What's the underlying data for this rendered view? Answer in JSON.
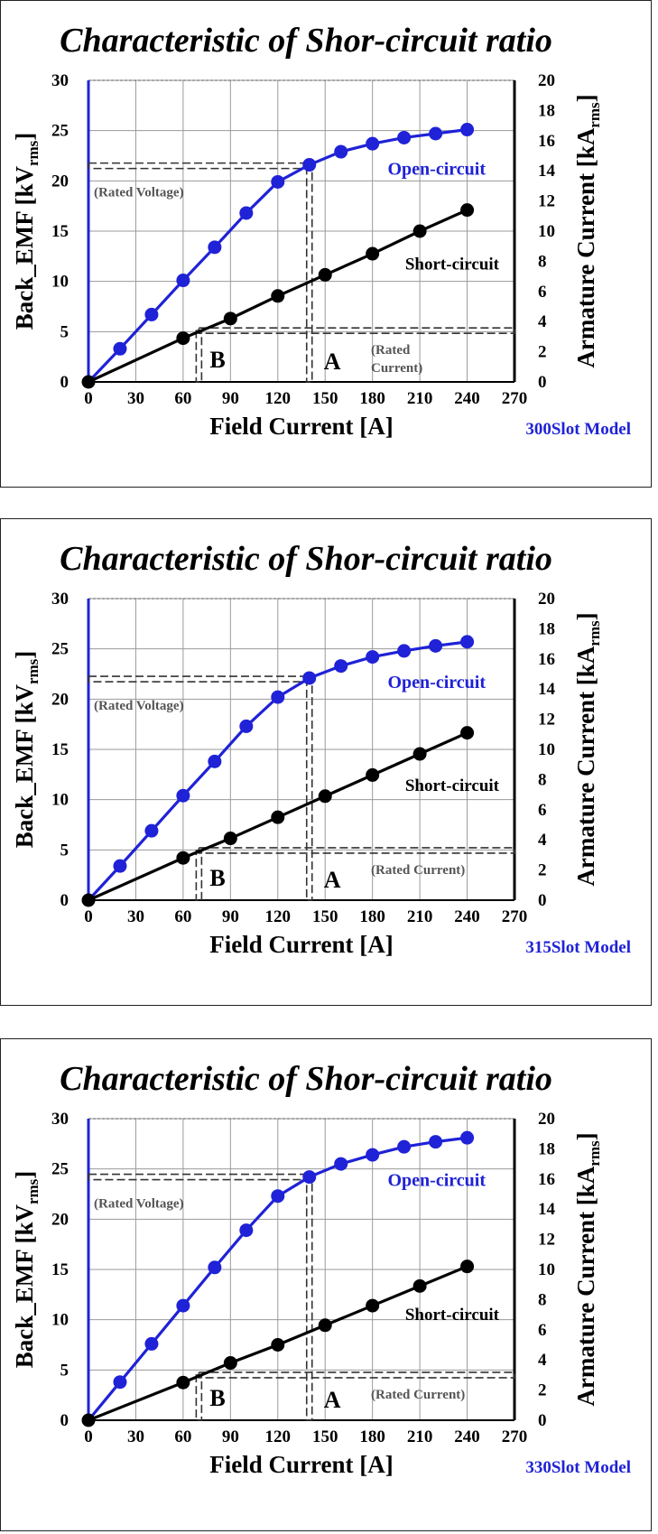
{
  "chart_data": [
    {
      "type": "line",
      "title": "Characteristic of Shor-circuit ratio",
      "xlabel": "Field Current [A]",
      "ylabel": "Back_EMF [kV",
      "ylabel_sub": "rms",
      "ylabel_end": "]",
      "y2label": "Armature Current [kA",
      "y2label_sub": "rms",
      "y2label_end": "]",
      "model_label": "300Slot Model",
      "xlim": [
        0,
        270
      ],
      "ylim": [
        0,
        30
      ],
      "y2lim": [
        0,
        20
      ],
      "x_ticks": [
        "0",
        "30",
        "60",
        "90",
        "120",
        "150",
        "180",
        "210",
        "240",
        "270"
      ],
      "y_ticks": [
        "0",
        "5",
        "10",
        "15",
        "20",
        "25",
        "30"
      ],
      "y2_ticks": [
        "0",
        "2",
        "4",
        "6",
        "8",
        "10",
        "12",
        "14",
        "16",
        "18",
        "20"
      ],
      "grid": true,
      "series": [
        {
          "name": "Open-circuit",
          "axis": "left",
          "color": "#1f22d6",
          "x": [
            0,
            20,
            40,
            60,
            80,
            100,
            120,
            140,
            160,
            180,
            200,
            220,
            240
          ],
          "y": [
            0,
            3.3,
            6.7,
            10.1,
            13.4,
            16.8,
            19.9,
            21.6,
            22.9,
            23.7,
            24.3,
            24.7,
            25.1
          ]
        },
        {
          "name": "Short-circuit",
          "axis": "right",
          "color": "#000000",
          "x": [
            0,
            60,
            90,
            120,
            150,
            180,
            210,
            240
          ],
          "y": [
            0,
            2.9,
            4.2,
            5.7,
            7.1,
            8.5,
            10.0,
            11.4
          ]
        }
      ],
      "rated_voltage": 21.5,
      "rated_current_right": 3.4,
      "point_B_x": 70,
      "point_A_x": 140,
      "annotations": {
        "open": "Open-circuit",
        "short": "Short-circuit",
        "rated_voltage": "(Rated Voltage)",
        "rated_current_lines": [
          "(Rated",
          "Current)"
        ],
        "A": "A",
        "B": "B"
      }
    },
    {
      "type": "line",
      "title": "Characteristic of Shor-circuit ratio",
      "xlabel": "Field Current [A]",
      "ylabel": "Back_EMF [kV",
      "ylabel_sub": "rms",
      "ylabel_end": "]",
      "y2label": "Armature Current [kA",
      "y2label_sub": "rms",
      "y2label_end": "]",
      "model_label": "315Slot Model",
      "xlim": [
        0,
        270
      ],
      "ylim": [
        0,
        30
      ],
      "y2lim": [
        0,
        20
      ],
      "x_ticks": [
        "0",
        "30",
        "60",
        "90",
        "120",
        "150",
        "180",
        "210",
        "240",
        "270"
      ],
      "y_ticks": [
        "0",
        "5",
        "10",
        "15",
        "20",
        "25",
        "30"
      ],
      "y2_ticks": [
        "0",
        "2",
        "4",
        "6",
        "8",
        "10",
        "12",
        "14",
        "16",
        "18",
        "20"
      ],
      "grid": true,
      "series": [
        {
          "name": "Open-circuit",
          "axis": "left",
          "color": "#1f22d6",
          "x": [
            0,
            20,
            40,
            60,
            80,
            100,
            120,
            140,
            160,
            180,
            200,
            220,
            240
          ],
          "y": [
            0,
            3.4,
            6.9,
            10.4,
            13.8,
            17.3,
            20.2,
            22.1,
            23.3,
            24.2,
            24.8,
            25.3,
            25.7
          ]
        },
        {
          "name": "Short-circuit",
          "axis": "right",
          "color": "#000000",
          "x": [
            0,
            60,
            90,
            120,
            150,
            180,
            210,
            240
          ],
          "y": [
            0,
            2.8,
            4.1,
            5.5,
            6.9,
            8.3,
            9.7,
            11.1
          ]
        }
      ],
      "rated_voltage": 22.0,
      "rated_current_right": 3.3,
      "point_B_x": 70,
      "point_A_x": 140,
      "annotations": {
        "open": "Open-circuit",
        "short": "Short-circuit",
        "rated_voltage": "(Rated Voltage)",
        "rated_current_lines": [
          "(Rated Current)"
        ],
        "A": "A",
        "B": "B"
      }
    },
    {
      "type": "line",
      "title": "Characteristic of Shor-circuit ratio",
      "xlabel": "Field Current [A]",
      "ylabel": "Back_EMF [kV",
      "ylabel_sub": "rms",
      "ylabel_end": "]",
      "y2label": "Armature Current [kA",
      "y2label_sub": "rms",
      "y2label_end": "]",
      "model_label": "330Slot Model",
      "xlim": [
        0,
        270
      ],
      "ylim": [
        0,
        30
      ],
      "y2lim": [
        0,
        20
      ],
      "x_ticks": [
        "0",
        "30",
        "60",
        "90",
        "120",
        "150",
        "180",
        "210",
        "240",
        "270"
      ],
      "y_ticks": [
        "0",
        "5",
        "10",
        "15",
        "20",
        "25",
        "30"
      ],
      "y2_ticks": [
        "0",
        "2",
        "4",
        "6",
        "8",
        "10",
        "12",
        "14",
        "16",
        "18",
        "20"
      ],
      "grid": true,
      "series": [
        {
          "name": "Open-circuit",
          "axis": "left",
          "color": "#1f22d6",
          "x": [
            0,
            20,
            40,
            60,
            80,
            100,
            120,
            140,
            160,
            180,
            200,
            220,
            240
          ],
          "y": [
            0,
            3.8,
            7.6,
            11.4,
            15.2,
            18.9,
            22.3,
            24.2,
            25.5,
            26.4,
            27.2,
            27.7,
            28.1
          ]
        },
        {
          "name": "Short-circuit",
          "axis": "right",
          "color": "#000000",
          "x": [
            0,
            60,
            90,
            120,
            150,
            180,
            210,
            240
          ],
          "y": [
            0,
            2.5,
            3.8,
            5.0,
            6.3,
            7.6,
            8.9,
            10.2
          ]
        }
      ],
      "rated_voltage": 24.2,
      "rated_current_right": 3.0,
      "point_B_x": 70,
      "point_A_x": 140,
      "annotations": {
        "open": "Open-circuit",
        "short": "Short-circuit",
        "rated_voltage": "(Rated Voltage)",
        "rated_current_lines": [
          "(Rated Current)"
        ],
        "A": "A",
        "B": "B"
      }
    }
  ]
}
